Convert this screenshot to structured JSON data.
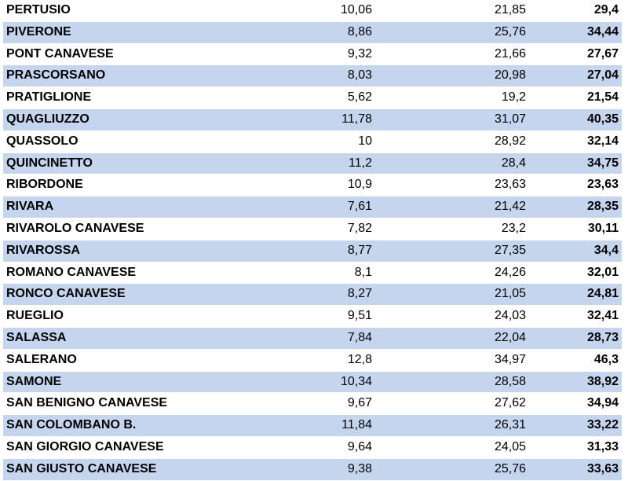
{
  "table": {
    "rows": [
      {
        "name": "PERTUSIO",
        "a": "10,06",
        "b": "21,85",
        "total": "29,4"
      },
      {
        "name": "PIVERONE",
        "a": "8,86",
        "b": "25,76",
        "total": "34,44"
      },
      {
        "name": "PONT CANAVESE",
        "a": "9,32",
        "b": "21,66",
        "total": "27,67"
      },
      {
        "name": "PRASCORSANO",
        "a": "8,03",
        "b": "20,98",
        "total": "27,04"
      },
      {
        "name": "PRATIGLIONE",
        "a": "5,62",
        "b": "19,2",
        "total": "21,54"
      },
      {
        "name": "QUAGLIUZZO",
        "a": "11,78",
        "b": "31,07",
        "total": "40,35"
      },
      {
        "name": "QUASSOLO",
        "a": "10",
        "b": "28,92",
        "total": "32,14"
      },
      {
        "name": "QUINCINETTO",
        "a": "11,2",
        "b": "28,4",
        "total": "34,75"
      },
      {
        "name": "RIBORDONE",
        "a": "10,9",
        "b": "23,63",
        "total": "23,63"
      },
      {
        "name": "RIVARA",
        "a": "7,61",
        "b": "21,42",
        "total": "28,35"
      },
      {
        "name": "RIVAROLO CANAVESE",
        "a": "7,82",
        "b": "23,2",
        "total": "30,11"
      },
      {
        "name": "RIVAROSSA",
        "a": "8,77",
        "b": "27,35",
        "total": "34,4"
      },
      {
        "name": "ROMANO CANAVESE",
        "a": "8,1",
        "b": "24,26",
        "total": "32,01"
      },
      {
        "name": "RONCO CANAVESE",
        "a": "8,27",
        "b": "21,05",
        "total": "24,81"
      },
      {
        "name": "RUEGLIO",
        "a": "9,51",
        "b": "24,03",
        "total": "32,41"
      },
      {
        "name": "SALASSA",
        "a": "7,84",
        "b": "22,04",
        "total": "28,73"
      },
      {
        "name": "SALERANO",
        "a": "12,8",
        "b": "34,97",
        "total": "46,3"
      },
      {
        "name": "SAMONE",
        "a": "10,34",
        "b": "28,58",
        "total": "38,92"
      },
      {
        "name": "SAN BENIGNO CANAVESE",
        "a": "9,67",
        "b": "27,62",
        "total": "34,94"
      },
      {
        "name": "SAN COLOMBANO B.",
        "a": "11,84",
        "b": "26,31",
        "total": "33,22"
      },
      {
        "name": "SAN GIORGIO CANAVESE",
        "a": "9,64",
        "b": "24,05",
        "total": "31,33"
      },
      {
        "name": "SAN GIUSTO CANAVESE",
        "a": "9,38",
        "b": "25,76",
        "total": "33,63"
      }
    ]
  },
  "colors": {
    "band": "#c5d5ee",
    "background": "#ffffff",
    "text": "#000000"
  }
}
